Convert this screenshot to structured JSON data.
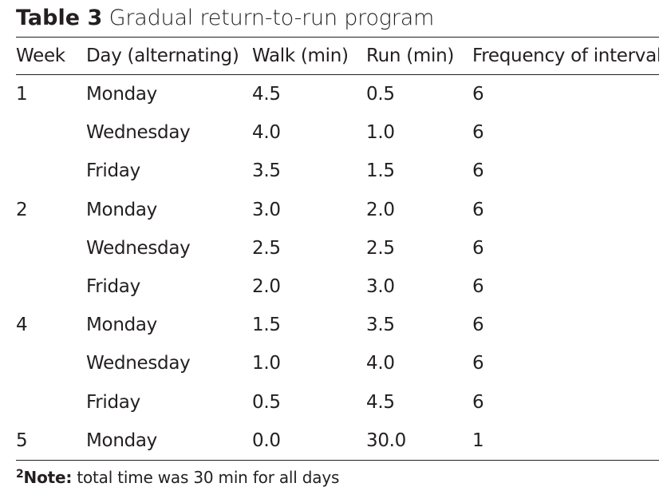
{
  "caption": {
    "label": "Table 3",
    "title": "Gradual return-to-run program"
  },
  "table": {
    "columns": [
      "Week",
      "Day (alternating)",
      "Walk (min)",
      "Run (min)",
      "Frequency of interval"
    ],
    "rows": [
      {
        "week": "1",
        "day": "Monday",
        "walk": "4.5",
        "run": "0.5",
        "freq": "6"
      },
      {
        "week": "",
        "day": "Wednesday",
        "walk": "4.0",
        "run": "1.0",
        "freq": "6"
      },
      {
        "week": "",
        "day": "Friday",
        "walk": "3.5",
        "run": "1.5",
        "freq": "6"
      },
      {
        "week": "2",
        "day": "Monday",
        "walk": "3.0",
        "run": "2.0",
        "freq": "6"
      },
      {
        "week": "",
        "day": "Wednesday",
        "walk": "2.5",
        "run": "2.5",
        "freq": "6"
      },
      {
        "week": "",
        "day": "Friday",
        "walk": "2.0",
        "run": "3.0",
        "freq": "6"
      },
      {
        "week": "4",
        "day": "Monday",
        "walk": "1.5",
        "run": "3.5",
        "freq": "6"
      },
      {
        "week": "",
        "day": "Wednesday",
        "walk": "1.0",
        "run": "4.0",
        "freq": "6"
      },
      {
        "week": "",
        "day": "Friday",
        "walk": "0.5",
        "run": "4.5",
        "freq": "6"
      },
      {
        "week": "5",
        "day": "Monday",
        "walk": "0.0",
        "run": "30.0",
        "freq": "1"
      }
    ]
  },
  "footnote": {
    "marker": "2",
    "label": "Note:",
    "text": " total time was 30 min for all days"
  }
}
